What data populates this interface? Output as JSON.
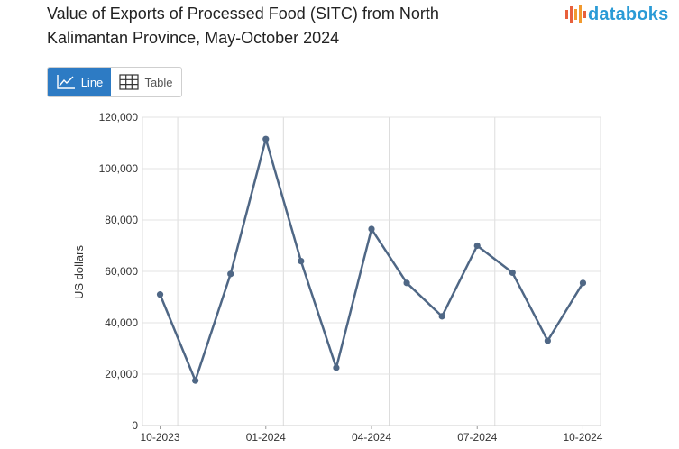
{
  "header": {
    "title": "Value of Exports of Processed Food (SITC) from North Kalimantan Province, May-October 2024",
    "brand": "databoks",
    "brand_color": "#2b9bd6",
    "brand_icon": "databoks-bars-icon"
  },
  "toggle": {
    "line_label": "Line",
    "table_label": "Table",
    "active": "line",
    "active_color": "#2d7bc4"
  },
  "chart_data": {
    "type": "line",
    "title": "Value of Exports of Processed Food (SITC) from North Kalimantan Province, May-October 2024",
    "ylabel": "US dollars",
    "xlabel": "",
    "ylim": [
      0,
      120000
    ],
    "yticks": [
      0,
      20000,
      40000,
      60000,
      80000,
      100000,
      120000
    ],
    "ytick_labels": [
      "0",
      "20,000",
      "40,000",
      "60,000",
      "80,000",
      "100,000",
      "120,000"
    ],
    "xtick_labels": [
      "10-2023",
      "01-2024",
      "04-2024",
      "07-2024",
      "10-2024"
    ],
    "xtick_indices": [
      0,
      3,
      6,
      9,
      12
    ],
    "x": [
      "10-2023",
      "11-2023",
      "12-2023",
      "01-2024",
      "02-2024",
      "03-2024",
      "04-2024",
      "05-2024",
      "06-2024",
      "07-2024",
      "08-2024",
      "09-2024",
      "10-2024"
    ],
    "series": [
      {
        "color": "#4f6785",
        "values": [
          51000,
          17500,
          59000,
          111500,
          64000,
          22500,
          76500,
          55500,
          42500,
          70000,
          59500,
          33000,
          55500
        ]
      }
    ],
    "grid": true,
    "legend": "none"
  }
}
